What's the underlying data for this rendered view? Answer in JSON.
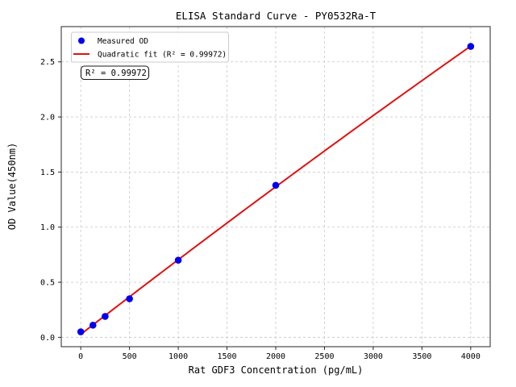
{
  "figure": {
    "background": "#ffffff"
  },
  "chart_data": {
    "type": "scatter",
    "title": "ELISA Standard Curve - PY0532Ra-T",
    "xlabel": "Rat GDF3 Concentration (pg/mL)",
    "ylabel": "OD Value(450nm)",
    "x": [
      0,
      125,
      250,
      500,
      1000,
      2000,
      4000
    ],
    "y": [
      0.05,
      0.11,
      0.19,
      0.35,
      0.7,
      1.38,
      2.64
    ],
    "series_label": "Measured OD",
    "fit": {
      "type": "quadratic",
      "label": "Quadratic fit (R² = 0.99972)",
      "r_squared": 0.99972,
      "coefficients": [
        0.0273,
        0.00068524,
        -7.84e-09
      ],
      "x_range": [
        0,
        4000
      ]
    },
    "annotation": {
      "text": "R² = 0.99972"
    },
    "xticks": {
      "values": [
        0,
        500,
        1000,
        1500,
        2000,
        2500,
        3000,
        3500,
        4000
      ],
      "labels": [
        "0",
        "500",
        "1000",
        "1500",
        "2000",
        "2500",
        "3000",
        "3500",
        "4000"
      ]
    },
    "yticks": {
      "values": [
        0.0,
        0.5,
        1.0,
        1.5,
        2.0,
        2.5
      ],
      "labels": [
        "0.0",
        "0.5",
        "1.0",
        "1.5",
        "2.0",
        "2.5"
      ]
    },
    "xlim": [
      -200,
      4200
    ],
    "ylim": [
      -0.085,
      2.82
    ],
    "grid": true,
    "legend": {
      "position": "upper left",
      "entries": [
        {
          "marker": "point",
          "label": "Measured OD"
        },
        {
          "marker": "line",
          "label": "Quadratic fit (R² = 0.99972)"
        }
      ]
    },
    "colors": {
      "points": "#0000ee",
      "fit_line": "#e01111",
      "grid": "#cdcdcd",
      "spine": "#262626",
      "tick": "#262626",
      "legend_border": "#cccccc",
      "annotation_border": "#1a1a1a",
      "text": "#000000"
    }
  }
}
